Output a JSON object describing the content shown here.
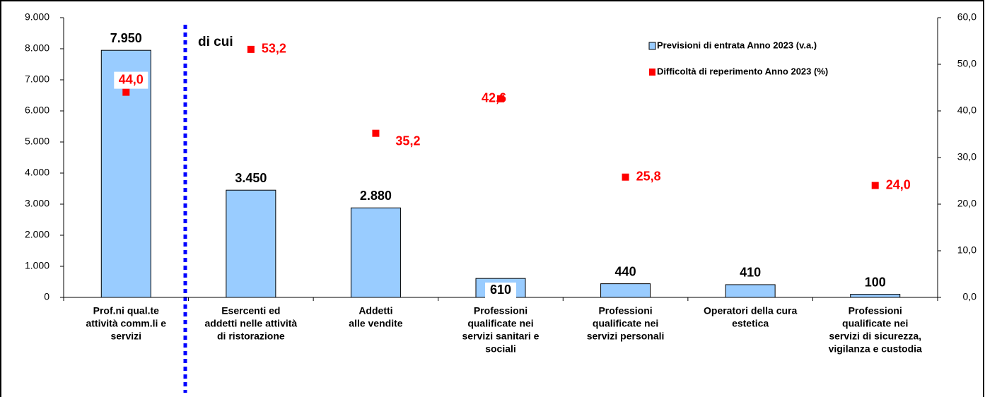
{
  "chart_data": {
    "type": "bar",
    "categories": [
      [
        "Prof.ni qual.te",
        "attività comm.li e",
        "servizi"
      ],
      [
        "Esercenti ed",
        "addetti nelle attività",
        "di ristorazione"
      ],
      [
        "Addetti",
        "alle vendite"
      ],
      [
        "Professioni",
        "qualificate nei",
        "servizi sanitari e",
        "sociali"
      ],
      [
        "Professioni",
        "qualificate nei",
        "servizi personali"
      ],
      [
        "Operatori della cura",
        "estetica"
      ],
      [
        "Professioni",
        "qualificate nei",
        "servizi di sicurezza,",
        "vigilanza e custodia"
      ]
    ],
    "series": [
      {
        "name": "Previsioni di entrata Anno 2023 (v.a.)",
        "color": "#99ccff",
        "type": "bar",
        "values": [
          7950,
          3450,
          2880,
          610,
          440,
          410,
          100
        ],
        "value_labels": [
          "7.950",
          "3.450",
          "2.880",
          "610",
          "440",
          "410",
          "100"
        ]
      },
      {
        "name": "Difficoltà di reperimento Anno 2023 (%)",
        "color": "#ff0000",
        "type": "scatter",
        "axis": "y2",
        "values": [
          44.0,
          53.2,
          35.2,
          42.6,
          25.8,
          null,
          24.0
        ],
        "value_labels": [
          "44,0",
          "53,2",
          "35,2",
          "42,6",
          "25,8",
          null,
          "24,0"
        ]
      }
    ],
    "annotations": [
      "di cui"
    ],
    "ylim": [
      0,
      9000
    ],
    "yticks": [
      0,
      {
        "value": 1000,
        "label": "1.000"
      },
      {
        "value": 2000,
        "label": "2.000"
      },
      {
        "value": 3000,
        "label": "3.000"
      },
      {
        "value": 4000,
        "label": "4.000"
      },
      {
        "value": 5000,
        "label": "5.000"
      },
      {
        "value": 6000,
        "label": "6.000"
      },
      {
        "value": 7000,
        "label": "7.000"
      },
      {
        "value": 8000,
        "label": "8.000"
      },
      {
        "value": 9000,
        "label": "9.000"
      }
    ],
    "y2lim": [
      0,
      60
    ],
    "y2ticks": [
      {
        "value": 0,
        "label": "0,0"
      },
      {
        "value": 10,
        "label": "10,0"
      },
      {
        "value": 20,
        "label": "20,0"
      },
      {
        "value": 30,
        "label": "30,0"
      },
      {
        "value": 40,
        "label": "40,0"
      },
      {
        "value": 50,
        "label": "50,0"
      },
      {
        "value": 60,
        "label": "60,0"
      }
    ],
    "legend": "top-right"
  }
}
